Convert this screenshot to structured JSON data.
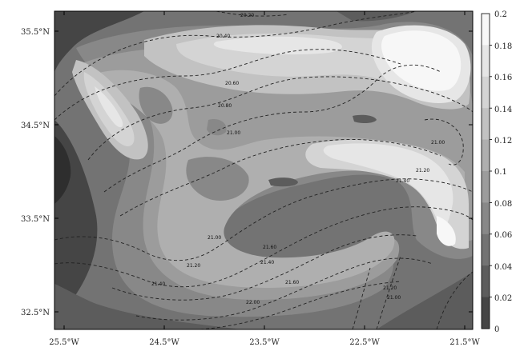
{
  "map": {
    "lat_ticks": [
      "35.5°N",
      "34.5°N",
      "33.5°N",
      "32.5°N"
    ],
    "lon_ticks": [
      "25.5°W",
      "24.5°W",
      "23.5°W",
      "22.5°W",
      "21.5°W"
    ],
    "contour_labels": [
      "20.20",
      "20.40",
      "20.60",
      "20.80",
      "21.00",
      "21.00",
      "21.20",
      "21.40",
      "21.00",
      "21.20",
      "21.40",
      "21.40",
      "21.60",
      "21.60",
      "22.00",
      "21.20",
      "21.00"
    ]
  },
  "colorbar": {
    "ticks": [
      "0.2",
      "0.18",
      "0.16",
      "0.14",
      "0.12",
      "0.1",
      "0.08",
      "0.06",
      "0.04",
      "0.02",
      "0"
    ],
    "colors": [
      "#f7f7f7",
      "#e6e6e6",
      "#d4d4d4",
      "#c2c2c2",
      "#afafaf",
      "#9c9c9c",
      "#888888",
      "#737373",
      "#5c5c5c",
      "#454545"
    ]
  }
}
